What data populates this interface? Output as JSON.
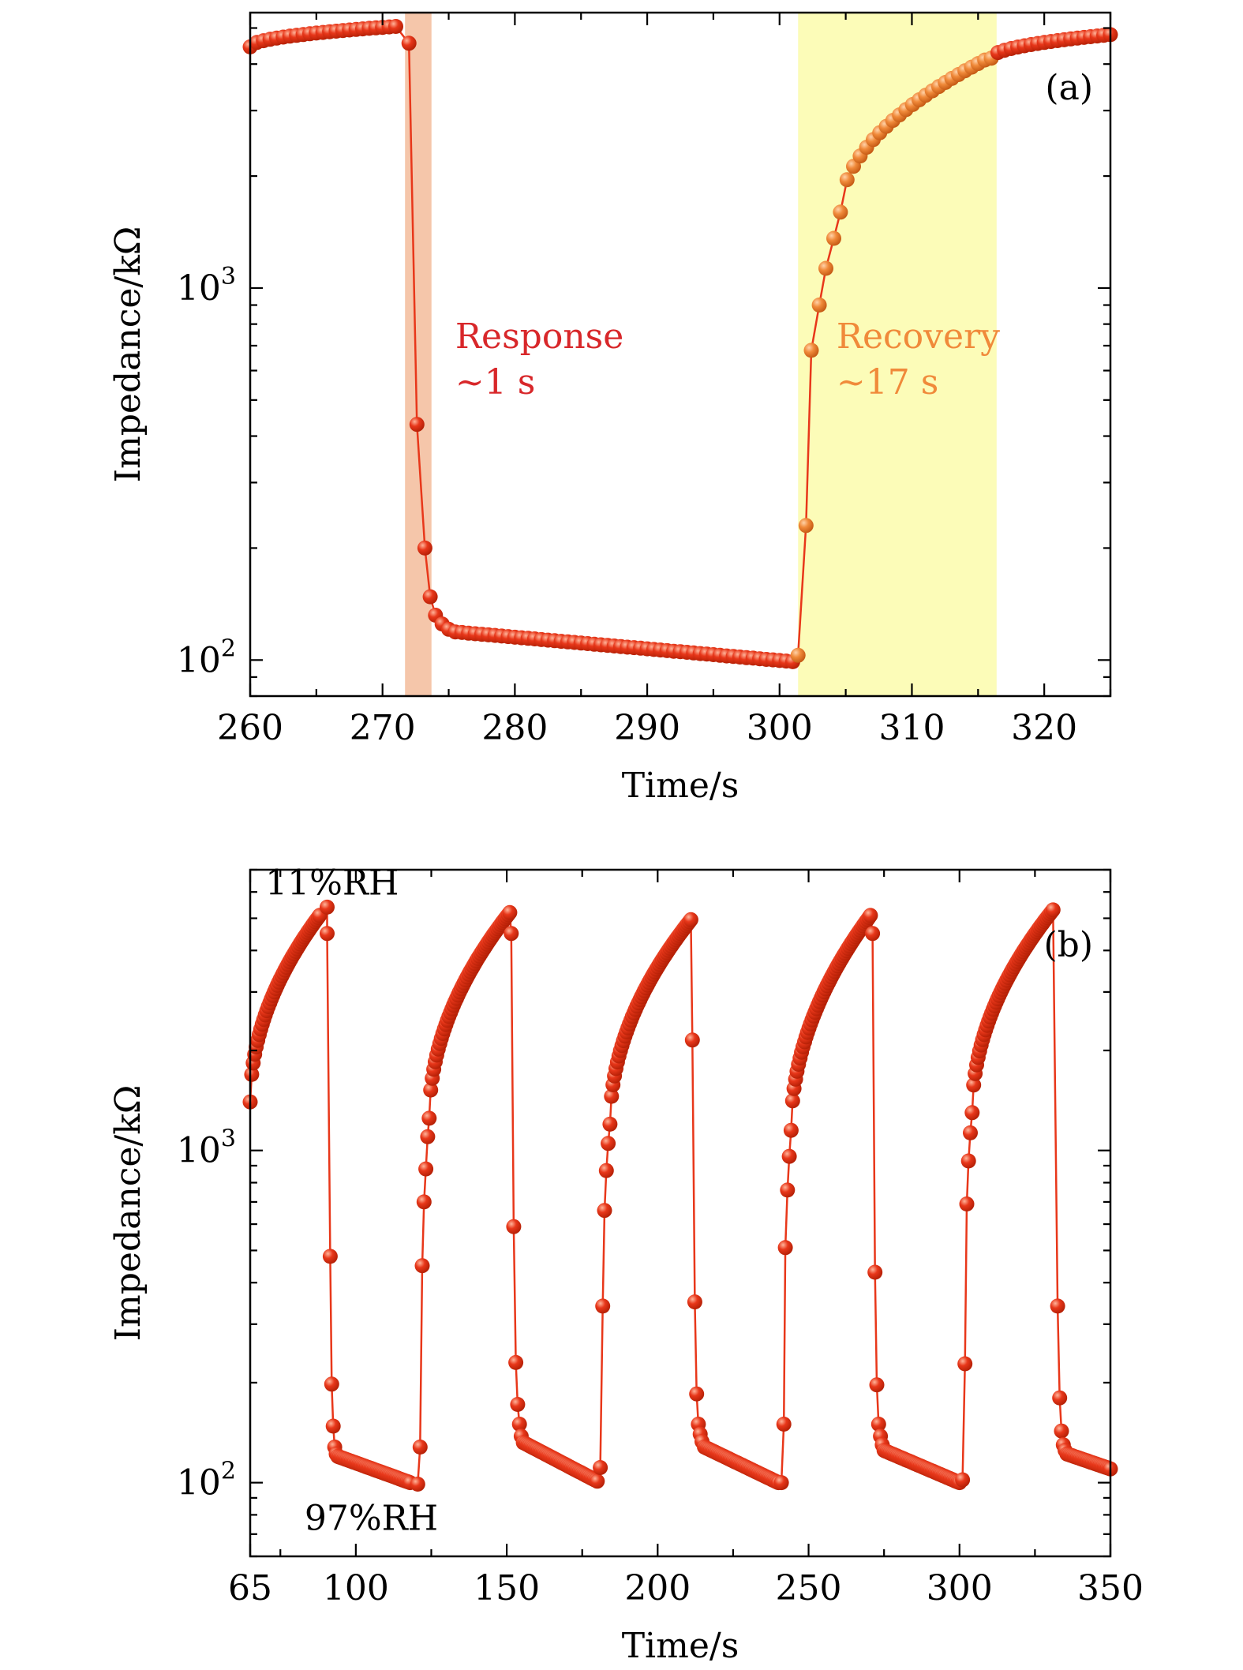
{
  "colors": {
    "marker": "#e8371a",
    "marker_highlight": "#ffb49a",
    "marker_recovery": "#f08a3a",
    "response_band": "#f5c6aa",
    "recovery_band": "#fcfcb8",
    "annotation": "#d8272a"
  },
  "chart_data": [
    {
      "id": "a",
      "type": "scatter",
      "panel_label": "(a)",
      "xlabel": "Time/s",
      "ylabel": "Impedance/kΩ",
      "x_ticks": [
        260,
        270,
        280,
        290,
        300,
        310,
        320
      ],
      "y_tick_labels": [
        {
          "value": 100,
          "base": "10",
          "exp": "2"
        },
        {
          "value": 1000,
          "base": "10",
          "exp": "3"
        }
      ],
      "y_scale": "log",
      "xlim": [
        260,
        325
      ],
      "ylim": [
        80,
        5500
      ],
      "grid": false,
      "shaded_regions": [
        {
          "x": [
            271.7,
            273.7
          ],
          "color": "response"
        },
        {
          "x": [
            301.4,
            316.4
          ],
          "color": "recovery"
        }
      ],
      "annotations": [
        {
          "lines": [
            "Response",
            "~1 s"
          ],
          "x": 275.5,
          "y": 690
        },
        {
          "lines": [
            "Recovery",
            "~17 s"
          ],
          "x": 304.3,
          "y": 690
        }
      ],
      "segments": [
        {
          "t0": 260,
          "t1": 271,
          "y0": 4450,
          "y1": 5050,
          "shape": "sqrt"
        },
        {
          "pts": [
            [
              272,
              4550
            ],
            [
              272.6,
              430
            ],
            [
              273.2,
              200
            ],
            [
              273.6,
              148
            ],
            [
              274.0,
              132
            ],
            [
              274.5,
              125
            ],
            [
              275.0,
              121
            ]
          ]
        },
        {
          "t0": 275.5,
          "t1": 301,
          "y0": 119,
          "y1": 99,
          "shape": "linear"
        },
        {
          "pts": [
            [
              301.4,
              103
            ],
            [
              302.0,
              230
            ],
            [
              302.4,
              680
            ],
            [
              303.0,
              900
            ],
            [
              303.5,
              1130
            ],
            [
              304.1,
              1360
            ]
          ]
        },
        {
          "t0": 304.6,
          "t1": 315.5,
          "y0": 1600,
          "y1": 4100,
          "shape": "sqrt"
        },
        {
          "t0": 316,
          "t1": 325,
          "y0": 4150,
          "y1": 4800,
          "shape": "sqrt"
        }
      ]
    },
    {
      "id": "b",
      "type": "scatter",
      "panel_label": "(b)",
      "xlabel": "Time/s",
      "ylabel": "Impedance/kΩ",
      "x_ticks": [
        65,
        100,
        150,
        200,
        250,
        300,
        350
      ],
      "y_tick_labels": [
        {
          "value": 100,
          "base": "10",
          "exp": "2"
        },
        {
          "value": 1000,
          "base": "10",
          "exp": "3"
        }
      ],
      "y_scale": "log",
      "xlim": [
        65,
        350
      ],
      "ylim": [
        60,
        7000
      ],
      "grid": false,
      "annotations": [
        {
          "lines": [
            "11%RH"
          ],
          "x": 70,
          "y": 5900
        },
        {
          "lines": [
            "97%RH"
          ],
          "x": 83,
          "y": 72
        }
      ],
      "segments": [
        {
          "t0": 65,
          "t1": 88,
          "y0": 1400,
          "y1": 5100,
          "shape": "sqrt"
        },
        {
          "pts": [
            [
              90.5,
              5400
            ],
            [
              90.5,
              4500
            ],
            [
              91.5,
              480
            ],
            [
              92.0,
              198
            ],
            [
              92.5,
              148
            ],
            [
              93.0,
              128
            ],
            [
              93.5,
              122
            ]
          ]
        },
        {
          "t0": 94,
          "t1": 118,
          "y0": 120,
          "y1": 100,
          "shape": "linear"
        },
        {
          "pts": [
            [
              120.5,
              99
            ],
            [
              121.3,
              128
            ],
            [
              122.0,
              450
            ],
            [
              122.6,
              700
            ],
            [
              123.2,
              880
            ],
            [
              123.8,
              1100
            ]
          ]
        },
        {
          "t0": 124.3,
          "t1": 151,
          "y0": 1250,
          "y1": 5200,
          "shape": "sqrt"
        },
        {
          "pts": [
            [
              151.5,
              4500
            ],
            [
              152.3,
              590
            ],
            [
              153.0,
              230
            ],
            [
              153.6,
              172
            ],
            [
              154.2,
              150
            ],
            [
              154.8,
              138
            ]
          ]
        },
        {
          "t0": 155.5,
          "t1": 180,
          "y0": 132,
          "y1": 101,
          "shape": "linear"
        },
        {
          "pts": [
            [
              181.0,
              111
            ],
            [
              181.8,
              340
            ],
            [
              182.4,
              660
            ],
            [
              183.0,
              870
            ],
            [
              183.6,
              1050
            ]
          ]
        },
        {
          "t0": 184.2,
          "t1": 211,
          "y0": 1200,
          "y1": 4950,
          "shape": "sqrt"
        },
        {
          "pts": [
            [
              211.5,
              2150
            ],
            [
              212.3,
              350
            ],
            [
              212.9,
              185
            ],
            [
              213.5,
              150
            ],
            [
              214.1,
              140
            ],
            [
              214.7,
              133
            ]
          ]
        },
        {
          "t0": 215.5,
          "t1": 240,
          "y0": 128,
          "y1": 100,
          "shape": "linear"
        },
        {
          "pts": [
            [
              241.0,
              100
            ],
            [
              241.8,
              150
            ],
            [
              242.3,
              510
            ],
            [
              243.0,
              760
            ],
            [
              243.6,
              960
            ]
          ]
        },
        {
          "t0": 244.2,
          "t1": 270.5,
          "y0": 1150,
          "y1": 5100,
          "shape": "sqrt"
        },
        {
          "pts": [
            [
              271.2,
              4500
            ],
            [
              272.0,
              430
            ],
            [
              272.6,
              197
            ],
            [
              273.2,
              150
            ],
            [
              273.8,
              138
            ],
            [
              274.4,
              130
            ]
          ]
        },
        {
          "t0": 275,
          "t1": 300,
          "y0": 125,
          "y1": 100,
          "shape": "linear"
        },
        {
          "pts": [
            [
              301.0,
              102
            ],
            [
              301.8,
              228
            ],
            [
              302.4,
              690
            ],
            [
              303.0,
              930
            ],
            [
              303.6,
              1130
            ]
          ]
        },
        {
          "t0": 304.2,
          "t1": 331,
          "y0": 1300,
          "y1": 5300,
          "shape": "sqrt"
        },
        {
          "pts": [
            [
              332.5,
              340
            ],
            [
              333.2,
              180
            ],
            [
              333.8,
              143
            ],
            [
              334.4,
              130
            ],
            [
              335.0,
              125
            ]
          ]
        },
        {
          "t0": 335.6,
          "t1": 350,
          "y0": 122,
          "y1": 110,
          "shape": "linear"
        }
      ]
    }
  ]
}
